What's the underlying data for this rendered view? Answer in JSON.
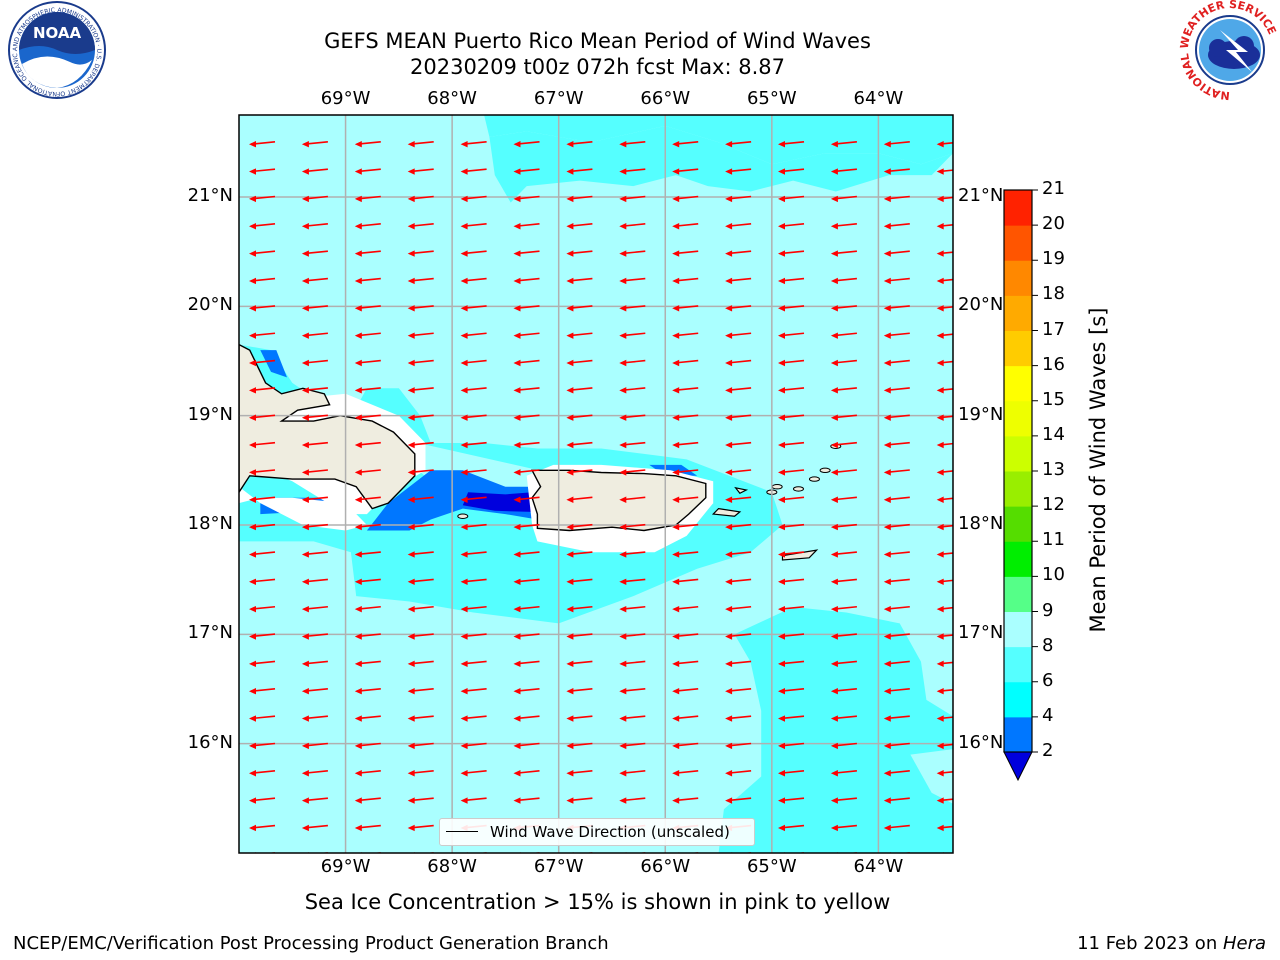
{
  "title": {
    "line1": "GEFS MEAN Puerto Rico Mean Period of Wind Waves",
    "line2": "20230209 t00z 072h fcst   Max: 8.87"
  },
  "logos": {
    "noaa_text": "NOAA",
    "noaa_ring_text": "NATIONAL OCEANIC AND ATMOSPHERIC ADMINISTRATION · U.S. DEPARTMENT OF COMMERCE",
    "nws_ring_text": "NATIONAL WEATHER SERVICE"
  },
  "map": {
    "lon_range": [
      -70.0,
      -63.3
    ],
    "lat_range": [
      15.0,
      21.75
    ],
    "lon_ticks": [
      "69°W",
      "68°W",
      "67°W",
      "66°W",
      "65°W",
      "64°W"
    ],
    "lat_ticks": [
      "21°N",
      "20°N",
      "19°N",
      "18°N",
      "17°N",
      "16°N"
    ],
    "grid": true,
    "ocean_colors": {
      "light": "#aaffff",
      "mid": "#55ffff",
      "blue": "#0077ff",
      "dark": "#0000dd"
    },
    "land_color": "#efede0",
    "arrow_color": "#ff0000",
    "legend_label": "Wind Wave Direction (unscaled)"
  },
  "colorbar": {
    "label": "Mean Period of Wind Waves [s]",
    "ticks": [
      "2",
      "4",
      "6",
      "8",
      "9",
      "10",
      "11",
      "12",
      "13",
      "14",
      "15",
      "16",
      "17",
      "18",
      "19",
      "20",
      "21"
    ],
    "colors": [
      "#0077ff",
      "#00ffff",
      "#55ffff",
      "#aaffff",
      "#55ff88",
      "#00ee00",
      "#55dd00",
      "#99ee00",
      "#ccff00",
      "#eeff00",
      "#ffff00",
      "#ffcc00",
      "#ffaa00",
      "#ff8800",
      "#ff5500",
      "#ff2200"
    ],
    "extend_min_color": "#0000dd",
    "extend_max_color": "#ff0000"
  },
  "note": "Sea Ice Concentration > 15% is shown in pink to yellow",
  "footer": {
    "left": "NCEP/EMC/Verification Post Processing Product Generation Branch",
    "right_date": "11 Feb 2023 on ",
    "right_host": "Hera"
  }
}
